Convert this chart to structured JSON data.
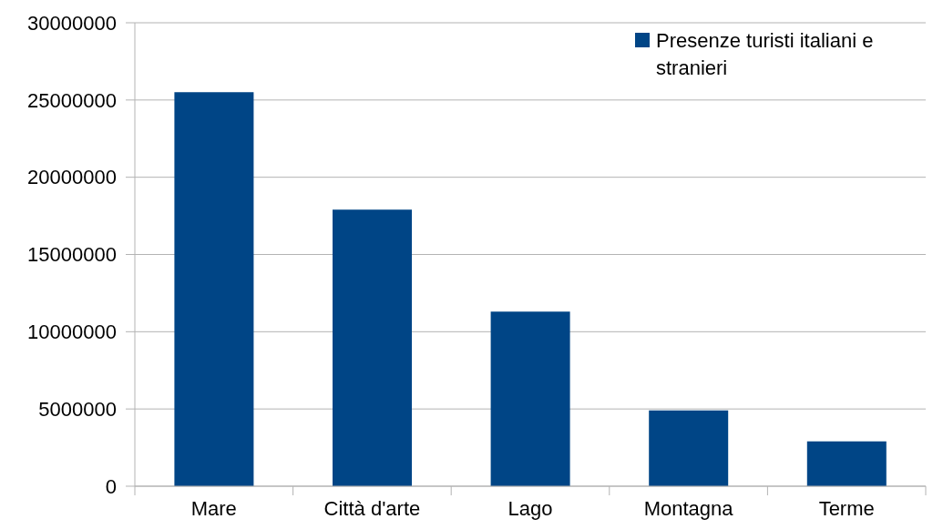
{
  "chart_data": {
    "type": "bar",
    "categories": [
      "Mare",
      "Città d'arte",
      "Lago",
      "Montagna",
      "Terme"
    ],
    "series": [
      {
        "name": "Presenze turisti italiani e stranieri",
        "color": "#004586",
        "values": [
          25500000,
          17900000,
          11300000,
          4900000,
          2900000
        ]
      }
    ],
    "ylim": [
      0,
      30000000
    ],
    "yticks": [
      0,
      5000000,
      10000000,
      15000000,
      20000000,
      25000000,
      30000000
    ],
    "grid": "y",
    "legend": "top right"
  }
}
